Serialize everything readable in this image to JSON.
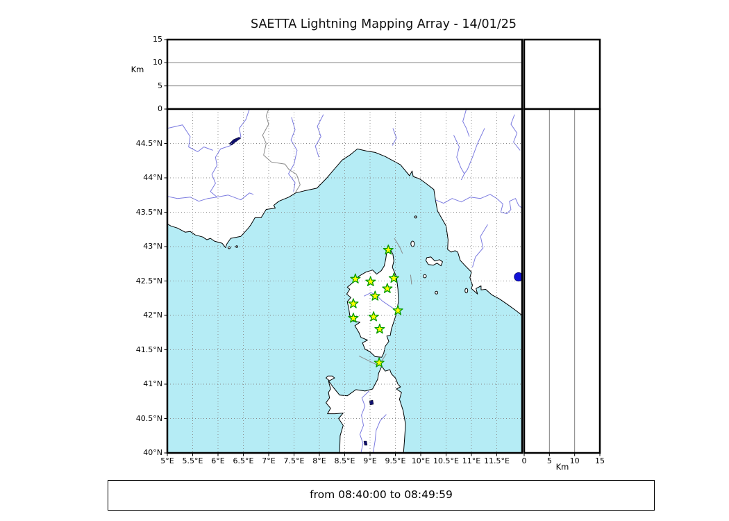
{
  "title": "SAETTA Lightning Mapping Array - 14/01/25",
  "footer": {
    "time_range": "from 08:40:00 to 08:49:59"
  },
  "colors": {
    "sea": "#b5ecf5",
    "land": "#ffffff",
    "coastline": "#000000",
    "river": "#7b7be0",
    "admin_border": "#8a8a8a",
    "grid": "#888888",
    "panel_grid": "#808080",
    "station_fill": "#ffff00",
    "station_edge": "#009900",
    "edge_marker": "#1212d6",
    "lake": "#10106e",
    "frame": "#000000"
  },
  "axes": {
    "top_panel": {
      "ylabel": "Km",
      "range_km": [
        0,
        15
      ],
      "grid_km": [
        5,
        10
      ],
      "ticks": [
        {
          "value": 0,
          "label": "0"
        },
        {
          "value": 5,
          "label": "5"
        },
        {
          "value": 10,
          "label": "10"
        },
        {
          "value": 15,
          "label": "15"
        }
      ]
    },
    "right_panel": {
      "xlabel": "Km",
      "range_km": [
        0,
        15
      ],
      "grid_km": [
        5,
        10
      ],
      "ticks": [
        {
          "value": 0,
          "label": "0"
        },
        {
          "value": 5,
          "label": "5"
        },
        {
          "value": 10,
          "label": "10"
        },
        {
          "value": 15,
          "label": "15"
        }
      ]
    },
    "map": {
      "lon_range": [
        5,
        12
      ],
      "lat_range": [
        40,
        45
      ],
      "xticks": [
        {
          "value": 5,
          "label": "5°E"
        },
        {
          "value": 5.5,
          "label": "5.5°E"
        },
        {
          "value": 6,
          "label": "6°E"
        },
        {
          "value": 6.5,
          "label": "6.5°E"
        },
        {
          "value": 7,
          "label": "7°E"
        },
        {
          "value": 7.5,
          "label": "7.5°E"
        },
        {
          "value": 8,
          "label": "8°E"
        },
        {
          "value": 8.5,
          "label": "8.5°E"
        },
        {
          "value": 9,
          "label": "9°E"
        },
        {
          "value": 9.5,
          "label": "9.5°E"
        },
        {
          "value": 10,
          "label": "10°E"
        },
        {
          "value": 10.5,
          "label": "10.5°E"
        },
        {
          "value": 11,
          "label": "11°E"
        },
        {
          "value": 11.5,
          "label": "11.5°E"
        }
      ],
      "yticks": [
        {
          "value": 40,
          "label": "40°N"
        },
        {
          "value": 40.5,
          "label": "40.5°N"
        },
        {
          "value": 41,
          "label": "41°N"
        },
        {
          "value": 41.5,
          "label": "41.5°N"
        },
        {
          "value": 42,
          "label": "42°N"
        },
        {
          "value": 42.5,
          "label": "42.5°N"
        },
        {
          "value": 43,
          "label": "43°N"
        },
        {
          "value": 43.5,
          "label": "43.5°N"
        },
        {
          "value": 44,
          "label": "44°N"
        },
        {
          "value": 44.5,
          "label": "44.5°N"
        }
      ]
    }
  },
  "chart_data": {
    "type": "scatter",
    "title": "SAETTA Lightning Mapping Array - 14/01/25",
    "time_window": "from 08:40:00 to 08:49:59",
    "map_panel": {
      "lon_range": [
        5,
        12
      ],
      "lat_range": [
        40,
        45
      ],
      "station_marker": "star",
      "stations_lon_lat": [
        [
          9.36,
          42.95
        ],
        [
          8.71,
          42.53
        ],
        [
          9.01,
          42.49
        ],
        [
          9.47,
          42.54
        ],
        [
          9.34,
          42.39
        ],
        [
          9.1,
          42.28
        ],
        [
          8.67,
          42.17
        ],
        [
          9.55,
          42.07
        ],
        [
          9.07,
          41.98
        ],
        [
          8.67,
          41.96
        ],
        [
          9.19,
          41.8
        ],
        [
          9.18,
          41.31
        ]
      ],
      "edge_marker": {
        "lon": 11.93,
        "lat": 42.56,
        "shape": "circle"
      }
    },
    "altitude_panels": {
      "ylabel": "Km",
      "range_km": [
        0,
        15
      ],
      "ticks": [
        0,
        5,
        10,
        15
      ],
      "data": "empty"
    },
    "legend": null,
    "grid": "dotted 0.5deg"
  }
}
